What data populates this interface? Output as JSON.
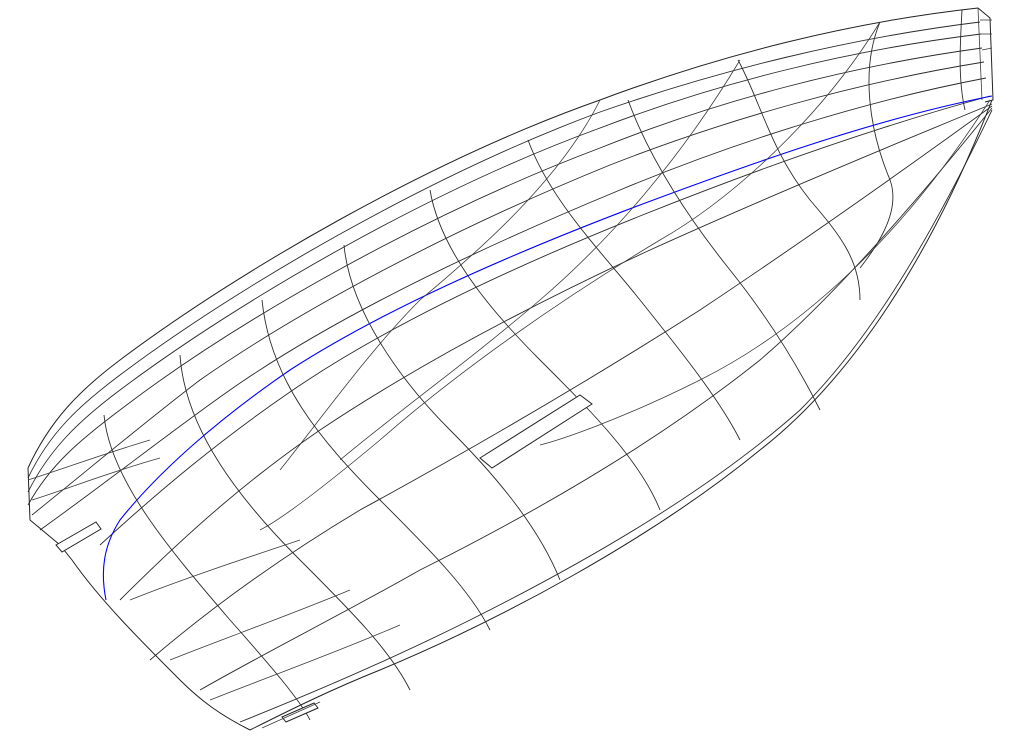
{
  "view": {
    "background": "#ffffff",
    "line_color": "#2a2a2a",
    "highlight_color": "#0000ff",
    "selected_curve": "waterline"
  }
}
